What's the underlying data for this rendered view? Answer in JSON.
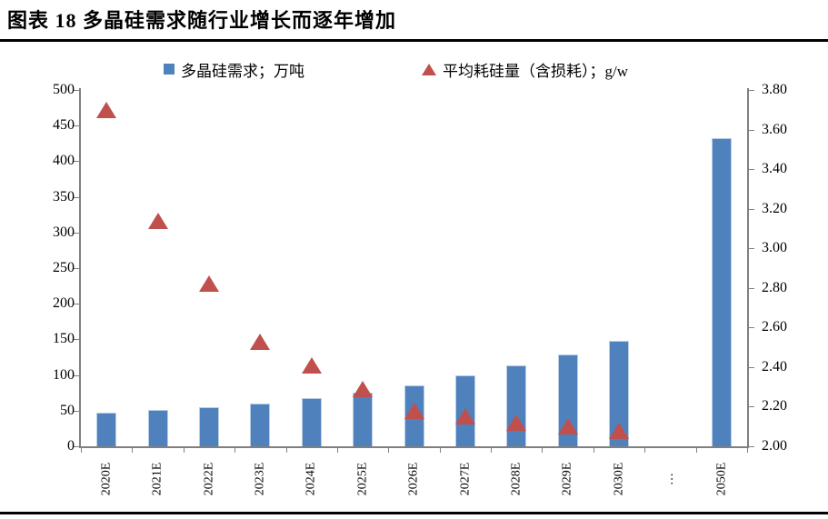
{
  "header": {
    "title": "图表 18 多晶硅需求随行业增长而逐年增加"
  },
  "legend": [
    {
      "marker": "square-icon",
      "color": "#4f81bd",
      "label": "多晶硅需求；万吨"
    },
    {
      "marker": "triangle-icon",
      "color": "#c0504d",
      "label": "平均耗硅量（含损耗）；g/w"
    }
  ],
  "chart_data": {
    "type": "bar",
    "subtype": "combo bar + triangle scatter, dual y-axis",
    "categories": [
      "2020E",
      "2021E",
      "2022E",
      "2023E",
      "2024E",
      "2025E",
      "2026E",
      "2027E",
      "2028E",
      "2029E",
      "2030E",
      "…",
      "2050E"
    ],
    "series": [
      {
        "name": "多晶硅需求；万吨",
        "type": "bar",
        "axis": "left",
        "color": "#4f81bd",
        "values": [
          47,
          51,
          55,
          60,
          67,
          75,
          85,
          99,
          113,
          129,
          148,
          null,
          433
        ]
      },
      {
        "name": "平均耗硅量（含损耗）；g/w",
        "type": "scatter",
        "marker": "triangle",
        "axis": "right",
        "color": "#c0504d",
        "values": [
          3.7,
          3.14,
          2.82,
          2.53,
          2.41,
          2.29,
          2.18,
          2.15,
          2.12,
          2.1,
          2.08,
          null,
          null
        ]
      }
    ],
    "left_axis": {
      "min": 0,
      "max": 500,
      "step": 50,
      "decimals": 0
    },
    "right_axis": {
      "min": 2.0,
      "max": 3.8,
      "step": 0.2,
      "decimals": 2
    },
    "grid": false,
    "legend_position": "top",
    "axis_color": "#808080"
  }
}
